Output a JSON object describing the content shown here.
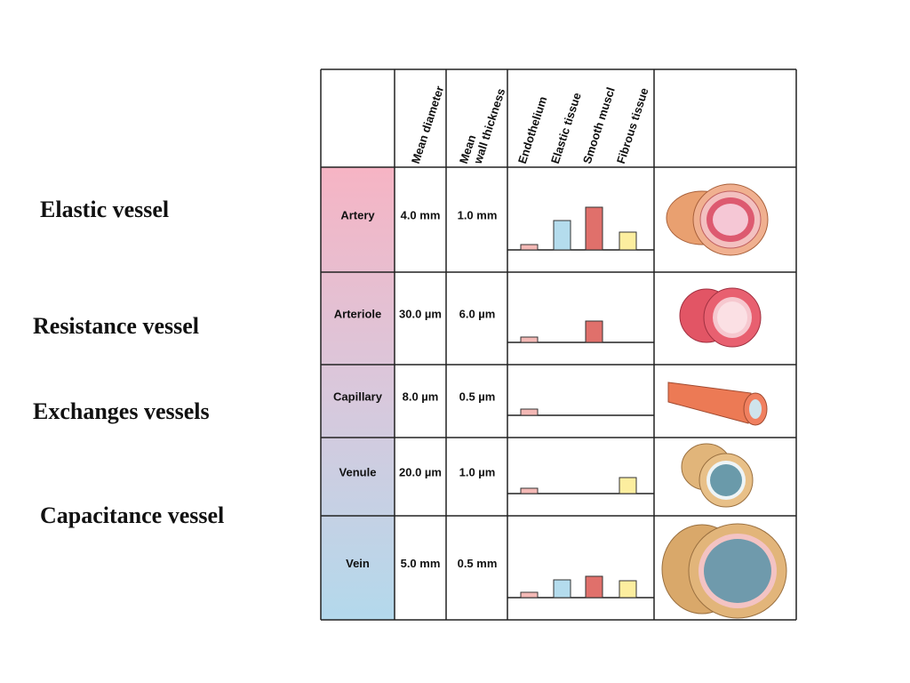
{
  "side_labels": [
    "Elastic vessel",
    "Resistance vessel",
    "Exchanges vessels",
    "Capacitance vessel"
  ],
  "table": {
    "headers": {
      "diameter": "Mean diameter",
      "wall": [
        "Mean",
        "wall  thickness"
      ]
    },
    "tissues": [
      {
        "name": "Endothelium",
        "color": "#f4b9b6"
      },
      {
        "name": "Elastic tissue",
        "color": "#b4dced"
      },
      {
        "name": "Smooth muscl",
        "color": "#e0706b"
      },
      {
        "name": "Fibrous tissue",
        "color": "#fcee9f"
      }
    ],
    "rows": [
      {
        "vessel": "Artery",
        "diameter": "4.0 mm",
        "wall": "1.0 mm",
        "tissue": [
          6,
          33,
          48,
          20
        ]
      },
      {
        "vessel": "Arteriole",
        "diameter": "30.0 µm",
        "wall": "6.0 µm",
        "tissue": [
          6,
          null,
          24,
          null
        ]
      },
      {
        "vessel": "Capillary",
        "diameter": "8.0 µm",
        "wall": "0.5 µm",
        "tissue": [
          7,
          null,
          null,
          null
        ]
      },
      {
        "vessel": "Venule",
        "diameter": "20.0 µm",
        "wall": "1.0 µm",
        "tissue": [
          6,
          null,
          null,
          18
        ]
      },
      {
        "vessel": "Vein",
        "diameter": "5.0 mm",
        "wall": "0.5 mm",
        "tissue": [
          6,
          20,
          24,
          19
        ]
      }
    ]
  }
}
